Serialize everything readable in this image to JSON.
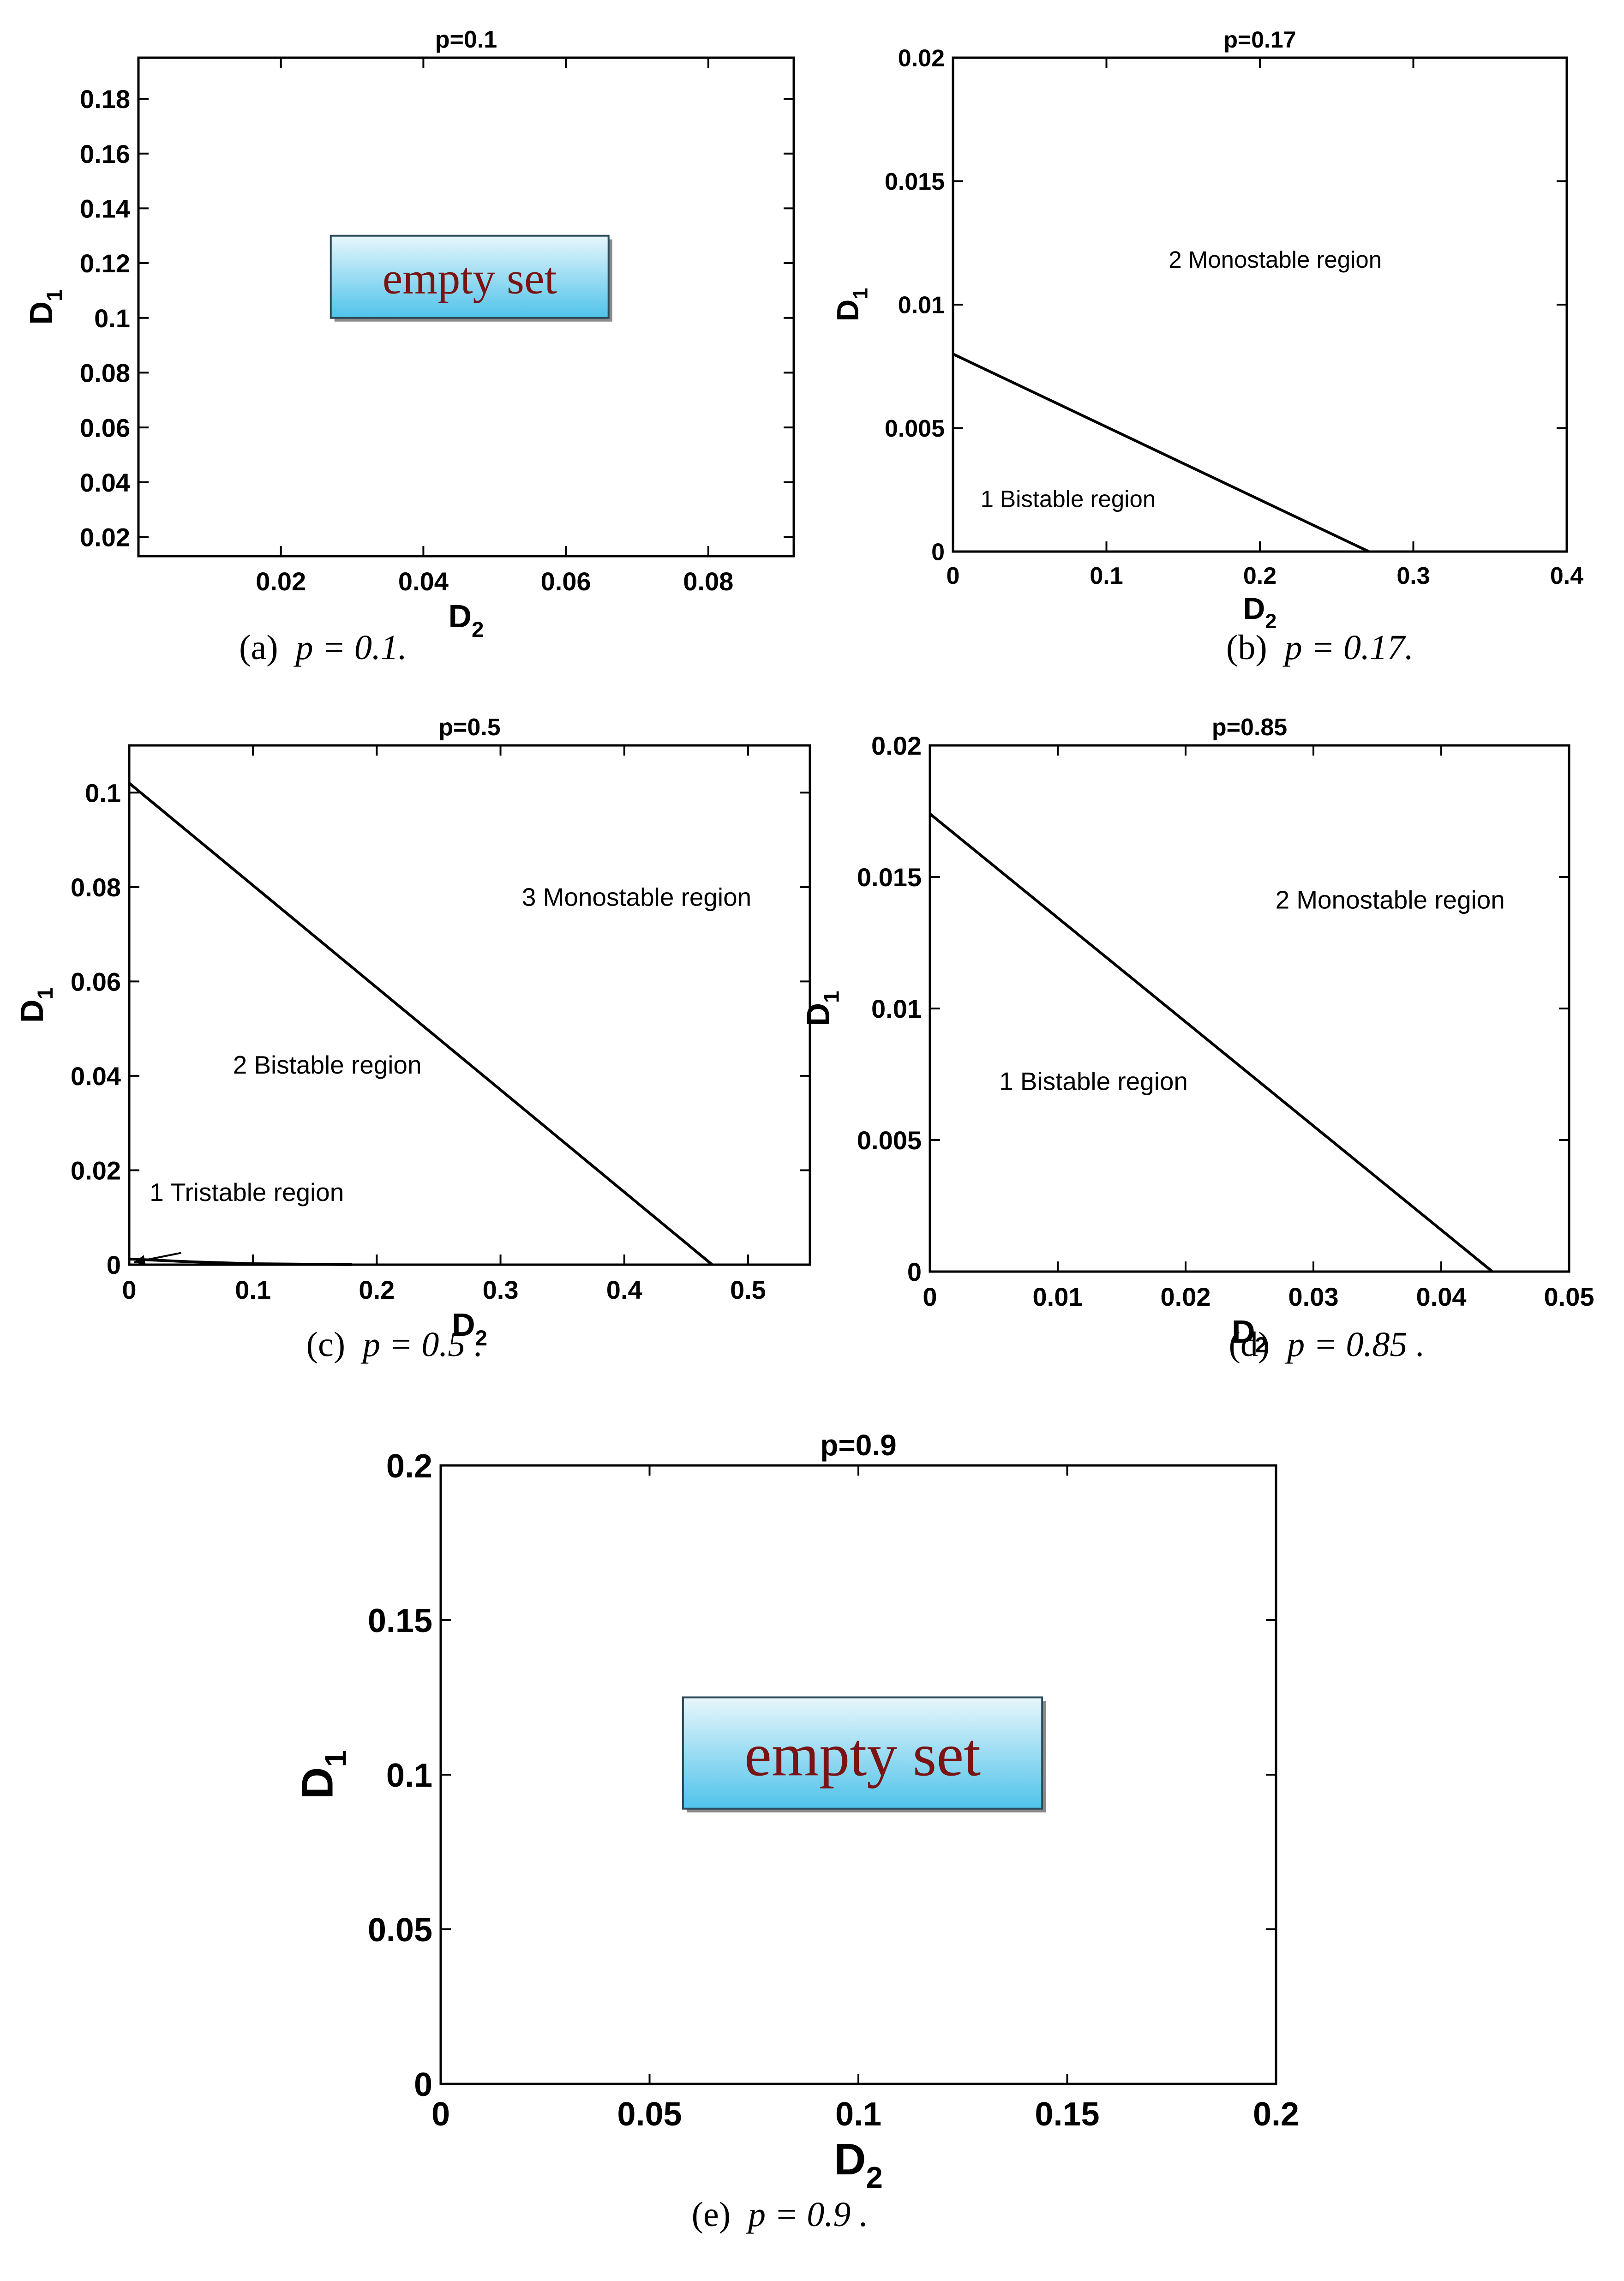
{
  "figure": {
    "panels": [
      {
        "id": "a",
        "chart_data": {
          "type": "scatter",
          "title": "p=0.1",
          "xlabel": "D",
          "xlabel_sub": "2",
          "ylabel": "D",
          "ylabel_sub": "1",
          "xlim": [
            0,
            0.092
          ],
          "ylim": [
            0.013,
            0.195
          ],
          "xticks": [
            0.02,
            0.04,
            0.06,
            0.08
          ],
          "xtick_labels": [
            "0.02",
            "0.04",
            "0.06",
            "0.08"
          ],
          "yticks": [
            0.02,
            0.04,
            0.06,
            0.08,
            0.1,
            0.12,
            0.14,
            0.16,
            0.18
          ],
          "ytick_labels": [
            "0.02",
            "0.04",
            "0.06",
            "0.08",
            "0.1",
            "0.12",
            "0.14",
            "0.16",
            "0.18"
          ],
          "grid": false,
          "boundaries": [],
          "annotation_box": {
            "text": "empty set",
            "x": [
              0.027,
              0.066
            ],
            "y": [
              0.1,
              0.13
            ]
          }
        },
        "caption": {
          "letter": "a",
          "expr": "p = 0.1."
        }
      },
      {
        "id": "b",
        "chart_data": {
          "type": "line",
          "title": "p=0.17",
          "xlabel": "D",
          "xlabel_sub": "2",
          "ylabel": "D",
          "ylabel_sub": "1",
          "xlim": [
            0,
            0.4
          ],
          "ylim": [
            0,
            0.02
          ],
          "xticks": [
            0,
            0.1,
            0.2,
            0.3,
            0.4
          ],
          "xtick_labels": [
            "0",
            "0.1",
            "0.2",
            "0.3",
            "0.4"
          ],
          "yticks": [
            0,
            0.005,
            0.01,
            0.015,
            0.02
          ],
          "ytick_labels": [
            "0",
            "0.005",
            "0.01",
            "0.015",
            "0.02"
          ],
          "grid": false,
          "boundaries": [
            {
              "x": [
                0,
                0.271
              ],
              "y": [
                0.008,
                0
              ]
            }
          ],
          "annotations": [
            {
              "text": "2 Monostable region",
              "x": 0.21,
              "y": 0.0115
            },
            {
              "text": "1 Bistable region",
              "x": 0.075,
              "y": 0.0018
            }
          ]
        },
        "caption": {
          "letter": "b",
          "expr": "p = 0.17."
        }
      },
      {
        "id": "c",
        "chart_data": {
          "type": "line",
          "title": "p=0.5",
          "xlabel": "D",
          "xlabel_sub": "2",
          "ylabel": "D",
          "ylabel_sub": "1",
          "xlim": [
            0,
            0.55
          ],
          "ylim": [
            0,
            0.11
          ],
          "xticks": [
            0,
            0.1,
            0.2,
            0.3,
            0.4,
            0.5
          ],
          "xtick_labels": [
            "0",
            "0.1",
            "0.2",
            "0.3",
            "0.4",
            "0.5"
          ],
          "yticks": [
            0,
            0.02,
            0.04,
            0.06,
            0.08,
            0.1
          ],
          "ytick_labels": [
            "0",
            "0.02",
            "0.04",
            "0.06",
            "0.08",
            "0.1"
          ],
          "grid": false,
          "boundaries": [
            {
              "x": [
                0,
                0.471
              ],
              "y": [
                0.102,
                0
              ]
            },
            {
              "x": [
                0,
                0.05,
                0.1,
                0.18
              ],
              "y": [
                0.0012,
                0.0006,
                0.0002,
                0
              ]
            }
          ],
          "annotations": [
            {
              "text": "3 Monostable region",
              "x": 0.41,
              "y": 0.076
            },
            {
              "text": "2 Bistable region",
              "x": 0.16,
              "y": 0.0405
            },
            {
              "text": "1 Tristable region",
              "x": 0.095,
              "y": 0.0135
            }
          ],
          "arrows": [
            {
              "from": [
                0.042,
                0.0025
              ],
              "to": [
                0.004,
                0.0005
              ]
            }
          ]
        },
        "caption": {
          "letter": "c",
          "expr": "p = 0.5 ."
        }
      },
      {
        "id": "d",
        "chart_data": {
          "type": "line",
          "title": "p=0.85",
          "xlabel": "D",
          "xlabel_sub": "2",
          "ylabel": "D",
          "ylabel_sub": "1",
          "xlim": [
            0,
            0.05
          ],
          "ylim": [
            0,
            0.02
          ],
          "xticks": [
            0,
            0.01,
            0.02,
            0.03,
            0.04,
            0.05
          ],
          "xtick_labels": [
            "0",
            "0.01",
            "0.02",
            "0.03",
            "0.04",
            "0.05"
          ],
          "yticks": [
            0,
            0.005,
            0.01,
            0.015,
            0.02
          ],
          "ytick_labels": [
            "0",
            "0.005",
            "0.01",
            "0.015",
            "0.02"
          ],
          "grid": false,
          "boundaries": [
            {
              "x": [
                0,
                0.044
              ],
              "y": [
                0.0174,
                0
              ]
            }
          ],
          "annotations": [
            {
              "text": "2 Monostable region",
              "x": 0.036,
              "y": 0.0138
            },
            {
              "text": "1 Bistable region",
              "x": 0.0128,
              "y": 0.0069
            }
          ]
        },
        "caption": {
          "letter": "d",
          "expr": "p = 0.85 ."
        }
      },
      {
        "id": "e",
        "chart_data": {
          "type": "scatter",
          "title": "p=0.9",
          "xlabel": "D",
          "xlabel_sub": "2",
          "ylabel": "D",
          "ylabel_sub": "1",
          "xlim": [
            0,
            0.2
          ],
          "ylim": [
            0,
            0.2
          ],
          "xticks": [
            0,
            0.05,
            0.1,
            0.15,
            0.2
          ],
          "xtick_labels": [
            "0",
            "0.05",
            "0.1",
            "0.15",
            "0.2"
          ],
          "yticks": [
            0,
            0.05,
            0.1,
            0.15,
            0.2
          ],
          "ytick_labels": [
            "0",
            "0.05",
            "0.1",
            "0.15",
            "0.2"
          ],
          "grid": false,
          "boundaries": [],
          "annotation_box": {
            "text": "empty set",
            "x": [
              0.058,
              0.144
            ],
            "y": [
              0.089,
              0.125
            ]
          }
        },
        "caption": {
          "letter": "e",
          "expr": "p = 0.9 ."
        }
      }
    ]
  },
  "colors": {
    "axis": "#000000",
    "text": "#000000",
    "box_top": "#e8f6fb",
    "box_bottom": "#4fc3ea",
    "box_text": "#7a1414"
  }
}
